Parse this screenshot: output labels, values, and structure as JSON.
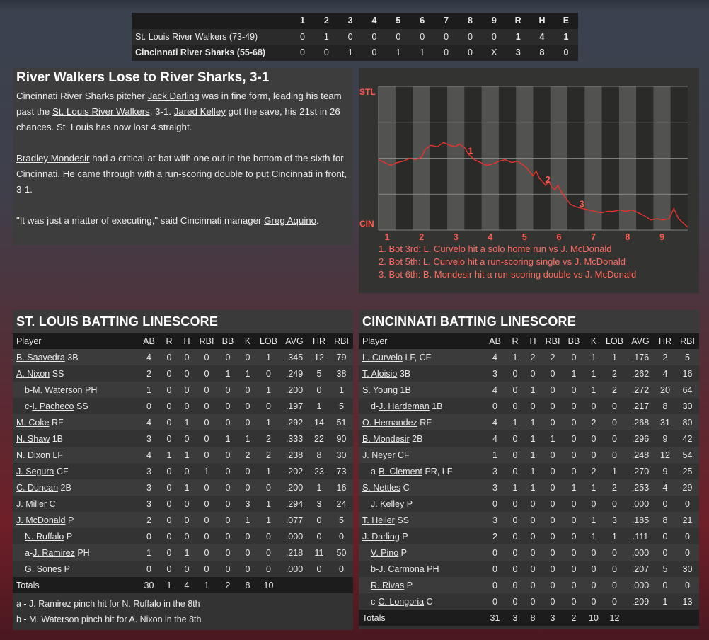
{
  "linescore": {
    "innings": [
      "1",
      "2",
      "3",
      "4",
      "5",
      "6",
      "7",
      "8",
      "9"
    ],
    "totals_labels": [
      "R",
      "H",
      "E"
    ],
    "teams": [
      {
        "name": "St. Louis River Walkers (73-49)",
        "innings": [
          "0",
          "1",
          "0",
          "0",
          "0",
          "0",
          "0",
          "0",
          "0"
        ],
        "totals": [
          "1",
          "4",
          "1"
        ]
      },
      {
        "name": "Cincinnati River Sharks (55-68)",
        "innings": [
          "0",
          "0",
          "1",
          "0",
          "1",
          "1",
          "0",
          "0",
          "X"
        ],
        "totals": [
          "3",
          "8",
          "0"
        ]
      }
    ]
  },
  "recap": {
    "headline": "River Walkers Lose to River Sharks, 3-1",
    "p1_a": "Cincinnati River Sharks pitcher ",
    "p1_link1": "Jack Darling",
    "p1_b": " was in fine form, leading his team past the ",
    "p1_link2": "St. Louis River Walkers",
    "p1_c": ", 3-1. ",
    "p1_link3": "Jared Kelley",
    "p1_d": " got the save, his 21st in 26 chances. St. Louis has now lost 4 straight.",
    "p2_link": "Bradley Mondesir",
    "p2_a": " had a critical at-bat with one out in the bottom of the sixth for Cincinnati. He came through with a run-scoring double to put Cincinnati in front, 3-1.",
    "p3_a": "\"It was just a matter of executing,\" said Cincinnati manager ",
    "p3_link": "Greg Aquino",
    "p3_b": "."
  },
  "wp_chart": {
    "top_label": "STL",
    "bottom_label": "CIN",
    "innings": [
      "1",
      "2",
      "3",
      "4",
      "5",
      "6",
      "7",
      "8",
      "9"
    ],
    "markers": [
      "1",
      "2",
      "3"
    ],
    "line_color": "#e8322c",
    "label_color": "#ff5a4e",
    "notes": [
      "1. Bot 3rd: L. Curvelo hit a solo home run vs J. McDonald",
      "2. Bot 5th: L. Curvelo hit a run-scoring single vs J. McDonald",
      "3. Bot 6th: B. Mondesir hit a run-scoring double vs J. McDonald"
    ]
  },
  "stl": {
    "title": "ST. LOUIS BATTING LINESCORE",
    "columns": [
      "Player",
      "AB",
      "R",
      "H",
      "RBI",
      "BB",
      "K",
      "LOB",
      "AVG",
      "HR",
      "RBI"
    ],
    "rows": [
      {
        "prefix": "",
        "name": "B. Saavedra",
        "pos": " 3B",
        "sub": false,
        "stats": [
          "4",
          "0",
          "0",
          "0",
          "0",
          "0",
          "1",
          ".345",
          "12",
          "79"
        ]
      },
      {
        "prefix": "",
        "name": "A. Nixon",
        "pos": " SS",
        "sub": false,
        "stats": [
          "2",
          "0",
          "0",
          "0",
          "1",
          "1",
          "0",
          ".249",
          "5",
          "38"
        ]
      },
      {
        "prefix": "b-",
        "name": "M. Waterson",
        "pos": " PH",
        "sub": true,
        "stats": [
          "1",
          "0",
          "0",
          "0",
          "0",
          "0",
          "1",
          ".200",
          "0",
          "1"
        ]
      },
      {
        "prefix": "c-",
        "name": "I. Pacheco",
        "pos": " SS",
        "sub": true,
        "stats": [
          "0",
          "0",
          "0",
          "0",
          "0",
          "0",
          "0",
          ".197",
          "1",
          "5"
        ]
      },
      {
        "prefix": "",
        "name": "M. Coke",
        "pos": " RF",
        "sub": false,
        "stats": [
          "4",
          "0",
          "1",
          "0",
          "0",
          "0",
          "1",
          ".292",
          "14",
          "51"
        ]
      },
      {
        "prefix": "",
        "name": "N. Shaw",
        "pos": " 1B",
        "sub": false,
        "stats": [
          "3",
          "0",
          "0",
          "0",
          "1",
          "1",
          "2",
          ".333",
          "22",
          "90"
        ]
      },
      {
        "prefix": "",
        "name": "N. Dixon",
        "pos": " LF",
        "sub": false,
        "stats": [
          "4",
          "1",
          "1",
          "0",
          "0",
          "2",
          "2",
          ".238",
          "8",
          "30"
        ]
      },
      {
        "prefix": "",
        "name": "J. Segura",
        "pos": " CF",
        "sub": false,
        "stats": [
          "3",
          "0",
          "0",
          "1",
          "0",
          "0",
          "1",
          ".202",
          "23",
          "73"
        ]
      },
      {
        "prefix": "",
        "name": "C. Duncan",
        "pos": " 2B",
        "sub": false,
        "stats": [
          "3",
          "0",
          "1",
          "0",
          "0",
          "0",
          "0",
          ".200",
          "1",
          "16"
        ]
      },
      {
        "prefix": "",
        "name": "J. Miller",
        "pos": " C",
        "sub": false,
        "stats": [
          "3",
          "0",
          "0",
          "0",
          "0",
          "3",
          "1",
          ".294",
          "3",
          "24"
        ]
      },
      {
        "prefix": "",
        "name": "J. McDonald",
        "pos": " P",
        "sub": false,
        "stats": [
          "2",
          "0",
          "0",
          "0",
          "0",
          "1",
          "1",
          ".077",
          "0",
          "5"
        ]
      },
      {
        "prefix": "",
        "name": "N. Ruffalo",
        "pos": " P",
        "sub": true,
        "stats": [
          "0",
          "0",
          "0",
          "0",
          "0",
          "0",
          "0",
          ".000",
          "0",
          "0"
        ]
      },
      {
        "prefix": "a-",
        "name": "J. Ramirez",
        "pos": " PH",
        "sub": true,
        "stats": [
          "1",
          "0",
          "1",
          "0",
          "0",
          "0",
          "0",
          ".218",
          "11",
          "50"
        ]
      },
      {
        "prefix": "",
        "name": "G. Sones",
        "pos": " P",
        "sub": true,
        "stats": [
          "0",
          "0",
          "0",
          "0",
          "0",
          "0",
          "0",
          ".000",
          "0",
          "0"
        ]
      }
    ],
    "totals": {
      "label": "Totals",
      "stats": [
        "30",
        "1",
        "4",
        "1",
        "2",
        "8",
        "10",
        "",
        "",
        ""
      ]
    },
    "footnotes": [
      "a - J. Ramirez pinch hit for N. Ruffalo in the 8th",
      "b - M. Waterson pinch hit for A. Nixon in the 8th"
    ]
  },
  "cin": {
    "title": "CINCINNATI BATTING LINESCORE",
    "columns": [
      "Player",
      "AB",
      "R",
      "H",
      "RBI",
      "BB",
      "K",
      "LOB",
      "AVG",
      "HR",
      "RBI"
    ],
    "rows": [
      {
        "prefix": "",
        "name": "L. Curvelo",
        "pos": " LF, CF",
        "sub": false,
        "stats": [
          "4",
          "1",
          "2",
          "2",
          "0",
          "1",
          "1",
          ".176",
          "2",
          "5"
        ]
      },
      {
        "prefix": "",
        "name": "T. Aloisio",
        "pos": " 3B",
        "sub": false,
        "stats": [
          "3",
          "0",
          "0",
          "0",
          "1",
          "1",
          "2",
          ".262",
          "4",
          "16"
        ]
      },
      {
        "prefix": "",
        "name": "S. Young",
        "pos": " 1B",
        "sub": false,
        "stats": [
          "4",
          "0",
          "1",
          "0",
          "0",
          "1",
          "2",
          ".272",
          "20",
          "64"
        ]
      },
      {
        "prefix": "d-",
        "name": "J. Hardeman",
        "pos": " 1B",
        "sub": true,
        "stats": [
          "0",
          "0",
          "0",
          "0",
          "0",
          "0",
          "0",
          ".217",
          "8",
          "30"
        ]
      },
      {
        "prefix": "",
        "name": "O. Hernandez",
        "pos": " RF",
        "sub": false,
        "stats": [
          "4",
          "1",
          "1",
          "0",
          "0",
          "2",
          "0",
          ".268",
          "31",
          "80"
        ]
      },
      {
        "prefix": "",
        "name": "B. Mondesir",
        "pos": " 2B",
        "sub": false,
        "stats": [
          "4",
          "0",
          "1",
          "1",
          "0",
          "0",
          "0",
          ".296",
          "9",
          "42"
        ]
      },
      {
        "prefix": "",
        "name": "J. Neyer",
        "pos": " CF",
        "sub": false,
        "stats": [
          "1",
          "0",
          "1",
          "0",
          "0",
          "0",
          "0",
          ".248",
          "12",
          "54"
        ]
      },
      {
        "prefix": "a-",
        "name": "B. Clement",
        "pos": " PR, LF",
        "sub": true,
        "stats": [
          "3",
          "0",
          "1",
          "0",
          "0",
          "2",
          "1",
          ".270",
          "9",
          "25"
        ]
      },
      {
        "prefix": "",
        "name": "S. Nettles",
        "pos": " C",
        "sub": false,
        "stats": [
          "3",
          "1",
          "1",
          "0",
          "1",
          "1",
          "2",
          ".253",
          "4",
          "29"
        ]
      },
      {
        "prefix": "",
        "name": "J. Kelley",
        "pos": " P",
        "sub": true,
        "stats": [
          "0",
          "0",
          "0",
          "0",
          "0",
          "0",
          "0",
          ".000",
          "0",
          "0"
        ]
      },
      {
        "prefix": "",
        "name": "T. Heller",
        "pos": " SS",
        "sub": false,
        "stats": [
          "3",
          "0",
          "0",
          "0",
          "0",
          "1",
          "3",
          ".185",
          "8",
          "21"
        ]
      },
      {
        "prefix": "",
        "name": "J. Darling",
        "pos": " P",
        "sub": false,
        "stats": [
          "2",
          "0",
          "0",
          "0",
          "0",
          "1",
          "1",
          ".111",
          "0",
          "0"
        ]
      },
      {
        "prefix": "",
        "name": "V. Pino",
        "pos": " P",
        "sub": true,
        "stats": [
          "0",
          "0",
          "0",
          "0",
          "0",
          "0",
          "0",
          ".000",
          "0",
          "0"
        ]
      },
      {
        "prefix": "b-",
        "name": "J. Carmona",
        "pos": " PH",
        "sub": true,
        "stats": [
          "0",
          "0",
          "0",
          "0",
          "0",
          "0",
          "0",
          ".207",
          "5",
          "30"
        ]
      },
      {
        "prefix": "",
        "name": "R. Rivas",
        "pos": " P",
        "sub": true,
        "stats": [
          "0",
          "0",
          "0",
          "0",
          "0",
          "0",
          "0",
          ".000",
          "0",
          "0"
        ]
      },
      {
        "prefix": "c-",
        "name": "C. Longoria",
        "pos": " C",
        "sub": true,
        "stats": [
          "0",
          "0",
          "0",
          "0",
          "0",
          "0",
          "0",
          ".209",
          "1",
          "13"
        ]
      }
    ],
    "totals": {
      "label": "Totals",
      "stats": [
        "31",
        "3",
        "8",
        "3",
        "2",
        "10",
        "12",
        "",
        "",
        ""
      ]
    }
  }
}
